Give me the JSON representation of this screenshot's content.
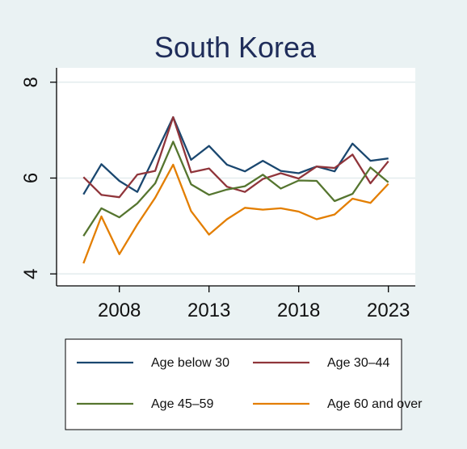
{
  "chart_data": {
    "type": "line",
    "title": "South Korea",
    "xlabel": "",
    "ylabel": "",
    "x": [
      2006,
      2007,
      2008,
      2009,
      2010,
      2011,
      2012,
      2013,
      2014,
      2015,
      2016,
      2017,
      2018,
      2019,
      2020,
      2021,
      2022,
      2023
    ],
    "xlim": [
      2004.5,
      2024.5
    ],
    "ylim": [
      3.75,
      8.3
    ],
    "xticks": [
      2008,
      2013,
      2018,
      2023
    ],
    "xtick_labels": [
      "2008",
      "2013",
      "2018",
      "2023"
    ],
    "yticks": [
      4,
      6,
      8
    ],
    "ytick_labels": [
      "4",
      "6",
      "8"
    ],
    "grid": true,
    "legend_position": "bottom",
    "series": [
      {
        "name": "Age below 30",
        "color": "#1a476f",
        "values": [
          5.66,
          6.29,
          5.94,
          5.71,
          6.48,
          7.27,
          6.38,
          6.67,
          6.28,
          6.14,
          6.36,
          6.15,
          6.1,
          6.24,
          6.14,
          6.72,
          6.36,
          6.41
        ]
      },
      {
        "name": "Age 30–44",
        "color": "#90353b",
        "values": [
          6.02,
          5.65,
          5.6,
          6.07,
          6.15,
          7.27,
          6.12,
          6.2,
          5.82,
          5.71,
          5.98,
          6.1,
          5.99,
          6.24,
          6.21,
          6.49,
          5.89,
          6.35
        ]
      },
      {
        "name": "Age 45–59",
        "color": "#55752f",
        "values": [
          4.79,
          5.37,
          5.18,
          5.47,
          5.89,
          6.76,
          5.87,
          5.65,
          5.76,
          5.83,
          6.07,
          5.78,
          5.95,
          5.94,
          5.52,
          5.67,
          6.22,
          5.91
        ]
      },
      {
        "name": "Age 60 and over",
        "color": "#e37e00",
        "values": [
          4.22,
          5.2,
          4.41,
          5.03,
          5.59,
          6.28,
          5.31,
          4.82,
          5.14,
          5.38,
          5.34,
          5.37,
          5.3,
          5.14,
          5.24,
          5.57,
          5.48,
          5.88
        ]
      }
    ]
  }
}
